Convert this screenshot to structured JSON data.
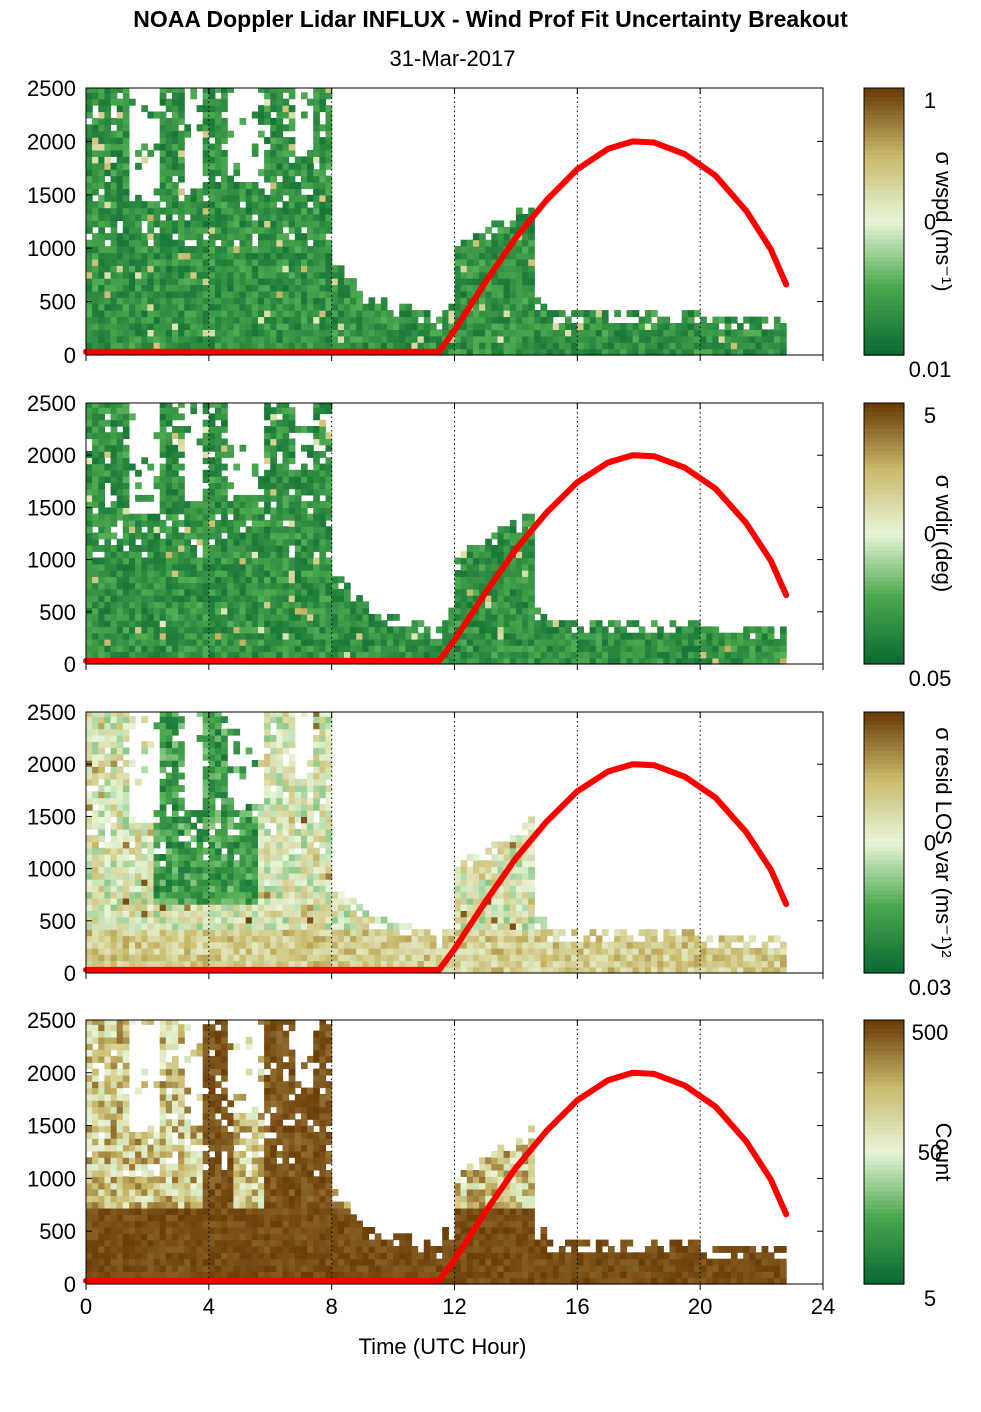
{
  "title": "NOAA Doppler Lidar INFLUX - Wind Prof Fit Uncertainty Breakout",
  "subtitle": "31-Mar-2017",
  "chart_data": [
    {
      "type": "heatmap",
      "name": "sigma-wspd",
      "xlim": [
        0,
        24
      ],
      "ylim": [
        0,
        2500
      ],
      "x_ticks": [
        "0",
        "4",
        "8",
        "12",
        "16",
        "20",
        "24"
      ],
      "y_ticks": [
        "0",
        "500",
        "1000",
        "1500",
        "2000",
        "2500"
      ],
      "colorbar_label": "σ wspd (ms⁻¹)",
      "colorbar_ticks": [
        "1",
        "0",
        "0.01"
      ],
      "colorbar_scale": "log",
      "palette": [
        "#0b6b32",
        "#4aa84e",
        "#e8f5d8",
        "#c9b96a",
        "#6b3d08"
      ]
    },
    {
      "type": "heatmap",
      "name": "sigma-wdir",
      "xlim": [
        0,
        24
      ],
      "ylim": [
        0,
        2500
      ],
      "x_ticks": [
        "0",
        "4",
        "8",
        "12",
        "16",
        "20",
        "24"
      ],
      "y_ticks": [
        "0",
        "500",
        "1000",
        "1500",
        "2000",
        "2500"
      ],
      "colorbar_label": "σ wdir (deg)",
      "colorbar_ticks": [
        "5",
        "0",
        "0.05"
      ],
      "colorbar_scale": "log",
      "palette": [
        "#0b6b32",
        "#4aa84e",
        "#e8f5d8",
        "#c9b96a",
        "#6b3d08"
      ]
    },
    {
      "type": "heatmap",
      "name": "sigma-resid-los-var",
      "xlim": [
        0,
        24
      ],
      "ylim": [
        0,
        2500
      ],
      "x_ticks": [
        "0",
        "4",
        "8",
        "12",
        "16",
        "20",
        "24"
      ],
      "y_ticks": [
        "0",
        "500",
        "1000",
        "1500",
        "2000",
        "2500"
      ],
      "colorbar_label": "σ resid LOS var (ms⁻¹)²",
      "colorbar_ticks": [
        "0",
        "0.03"
      ],
      "colorbar_scale": "log",
      "palette": [
        "#0b6b32",
        "#4aa84e",
        "#e8f5d8",
        "#c9b96a",
        "#6b3d08"
      ]
    },
    {
      "type": "heatmap",
      "name": "count",
      "xlim": [
        0,
        24
      ],
      "ylim": [
        0,
        2500
      ],
      "x_ticks": [
        "0",
        "4",
        "8",
        "12",
        "16",
        "20",
        "24"
      ],
      "y_ticks": [
        "0",
        "500",
        "1000",
        "1500",
        "2000",
        "2500"
      ],
      "xlabel": "Time (UTC Hour)",
      "colorbar_label": "Count",
      "colorbar_ticks": [
        "500",
        "50",
        "5"
      ],
      "colorbar_scale": "log",
      "palette": [
        "#0b6b32",
        "#4aa84e",
        "#e8f5d8",
        "#c9b96a",
        "#6b3d08"
      ]
    }
  ],
  "overlay_curve": {
    "color": "#ff0000",
    "points": [
      [
        0,
        30
      ],
      [
        11.5,
        30
      ],
      [
        12,
        230
      ],
      [
        13,
        680
      ],
      [
        14,
        1100
      ],
      [
        15,
        1450
      ],
      [
        16,
        1740
      ],
      [
        17,
        1930
      ],
      [
        17.8,
        2000
      ],
      [
        18.5,
        1990
      ],
      [
        19.5,
        1880
      ],
      [
        20.5,
        1680
      ],
      [
        21.5,
        1350
      ],
      [
        22.3,
        990
      ],
      [
        22.8,
        660
      ]
    ]
  },
  "grid": {
    "vertical_dotted_at": [
      4,
      8,
      12,
      16,
      20,
      24
    ]
  }
}
